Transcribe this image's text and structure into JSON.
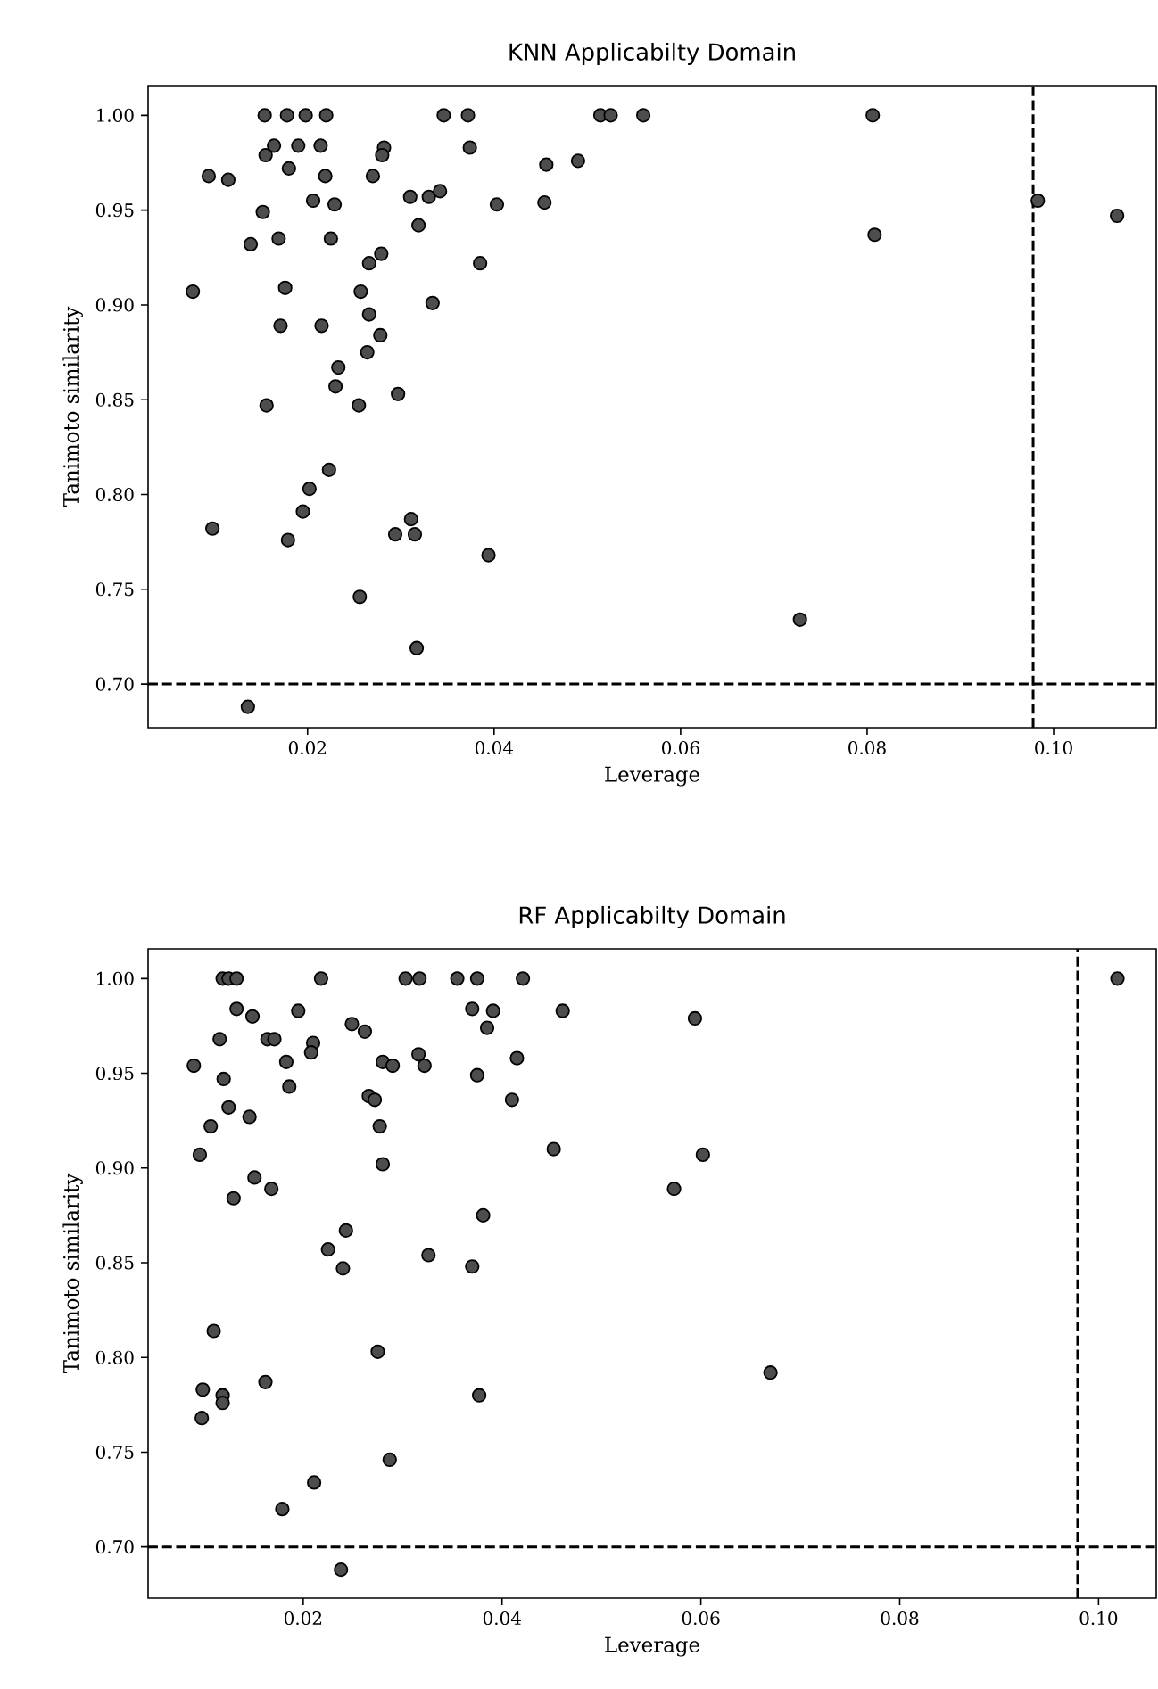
{
  "chart_data": [
    {
      "type": "scatter",
      "title": "KNN Applicabilty Domain",
      "xlabel": "Leverage",
      "ylabel": "Tanimoto similarity",
      "color": "#4d4d4d",
      "marker": "circle",
      "x": [
        0.0154,
        0.0178,
        0.0198,
        0.022,
        0.0346,
        0.0372,
        0.0514,
        0.0525,
        0.056,
        0.0806,
        0.0456,
        0.049,
        0.0454,
        0.0808,
        0.0983,
        0.1068,
        0.0728,
        0.0164,
        0.0155,
        0.019,
        0.0214,
        0.0282,
        0.028,
        0.0094,
        0.0115,
        0.018,
        0.0219,
        0.027,
        0.0374,
        0.0206,
        0.0229,
        0.031,
        0.033,
        0.0342,
        0.0403,
        0.0152,
        0.0319,
        0.0139,
        0.0169,
        0.0225,
        0.0279,
        0.0266,
        0.0385,
        0.0077,
        0.0176,
        0.0257,
        0.0334,
        0.0266,
        0.0171,
        0.0215,
        0.0278,
        0.0264,
        0.0233,
        0.023,
        0.0297,
        0.0156,
        0.0255,
        0.0223,
        0.0202,
        0.0195,
        0.0098,
        0.0179,
        0.0311,
        0.0294,
        0.0315,
        0.0394,
        0.0256,
        0.0317,
        0.0136
      ],
      "values": [
        1.0,
        1.0,
        1.0,
        1.0,
        1.0,
        1.0,
        1.0,
        1.0,
        1.0,
        1.0,
        0.974,
        0.976,
        0.954,
        0.937,
        0.955,
        0.947,
        0.734,
        0.984,
        0.979,
        0.984,
        0.984,
        0.983,
        0.979,
        0.968,
        0.966,
        0.972,
        0.968,
        0.968,
        0.983,
        0.955,
        0.953,
        0.957,
        0.957,
        0.96,
        0.953,
        0.949,
        0.942,
        0.932,
        0.935,
        0.935,
        0.927,
        0.922,
        0.922,
        0.907,
        0.909,
        0.907,
        0.901,
        0.895,
        0.889,
        0.889,
        0.884,
        0.875,
        0.867,
        0.857,
        0.853,
        0.847,
        0.847,
        0.813,
        0.803,
        0.791,
        0.782,
        0.776,
        0.787,
        0.779,
        0.779,
        0.768,
        0.746,
        0.719,
        0.688
      ],
      "xlim": [
        0.0029,
        0.111
      ],
      "ylim": [
        0.677,
        1.0157
      ],
      "xticks": [
        0.02,
        0.04,
        0.06,
        0.08,
        {
          "value": 0.1,
          "label": "0.10"
        }
      ],
      "yticks": [
        {
          "value": 0.7,
          "label": "0.70"
        },
        0.75,
        {
          "value": 0.8,
          "label": "0.80"
        },
        0.85,
        {
          "value": 0.9,
          "label": "0.90"
        },
        0.95,
        {
          "value": 1.0,
          "label": "1.00"
        }
      ],
      "ref_lines": [
        {
          "axis": "x",
          "value": 0.0978,
          "color": "#000000",
          "line_style": "dashed"
        },
        {
          "axis": "y",
          "value": 0.7,
          "color": "#000000",
          "line_style": "dashed"
        }
      ]
    },
    {
      "type": "scatter",
      "title": "RF Applicabilty Domain",
      "xlabel": "Leverage",
      "ylabel": "Tanimoto similarity",
      "color": "#4d4d4d",
      "marker": "circle",
      "x": [
        0.0119,
        0.0125,
        0.0133,
        0.0218,
        0.0303,
        0.0317,
        0.0355,
        0.0375,
        0.0421,
        0.1019,
        0.0133,
        0.0149,
        0.0195,
        0.037,
        0.0391,
        0.0461,
        0.0385,
        0.0249,
        0.0262,
        0.0116,
        0.0164,
        0.0171,
        0.021,
        0.0208,
        0.0316,
        0.009,
        0.0183,
        0.028,
        0.029,
        0.0322,
        0.0415,
        0.012,
        0.0375,
        0.0186,
        0.0266,
        0.0272,
        0.041,
        0.0125,
        0.0146,
        0.0107,
        0.0277,
        0.0096,
        0.028,
        0.0452,
        0.0594,
        0.0602,
        0.0573,
        0.067,
        0.0151,
        0.0168,
        0.013,
        0.0381,
        0.0243,
        0.0225,
        0.024,
        0.0326,
        0.037,
        0.011,
        0.0275,
        0.0162,
        0.0099,
        0.0119,
        0.0119,
        0.0098,
        0.0377,
        0.0287,
        0.0211,
        0.0179,
        0.0238
      ],
      "values": [
        1.0,
        1.0,
        1.0,
        1.0,
        1.0,
        1.0,
        1.0,
        1.0,
        1.0,
        1.0,
        0.984,
        0.98,
        0.983,
        0.984,
        0.983,
        0.983,
        0.974,
        0.976,
        0.972,
        0.968,
        0.968,
        0.968,
        0.966,
        0.961,
        0.96,
        0.954,
        0.956,
        0.956,
        0.954,
        0.954,
        0.958,
        0.947,
        0.949,
        0.943,
        0.938,
        0.936,
        0.936,
        0.932,
        0.927,
        0.922,
        0.922,
        0.907,
        0.902,
        0.91,
        0.979,
        0.907,
        0.889,
        0.792,
        0.895,
        0.889,
        0.884,
        0.875,
        0.867,
        0.857,
        0.847,
        0.854,
        0.848,
        0.814,
        0.803,
        0.787,
        0.783,
        0.78,
        0.776,
        0.768,
        0.78,
        0.746,
        0.734,
        0.72,
        0.688
      ],
      "xlim": [
        0.0044,
        0.1058
      ],
      "ylim": [
        0.673,
        1.0157
      ],
      "xticks": [
        0.02,
        0.04,
        0.06,
        0.08,
        {
          "value": 0.1,
          "label": "0.10"
        }
      ],
      "yticks": [
        {
          "value": 0.7,
          "label": "0.70"
        },
        0.75,
        {
          "value": 0.8,
          "label": "0.80"
        },
        0.85,
        {
          "value": 0.9,
          "label": "0.90"
        },
        0.95,
        {
          "value": 1.0,
          "label": "1.00"
        }
      ],
      "ref_lines": [
        {
          "axis": "x",
          "value": 0.0979,
          "color": "#000000",
          "line_style": "dashed"
        },
        {
          "axis": "y",
          "value": 0.7,
          "color": "#000000",
          "line_style": "dashed"
        }
      ]
    }
  ]
}
